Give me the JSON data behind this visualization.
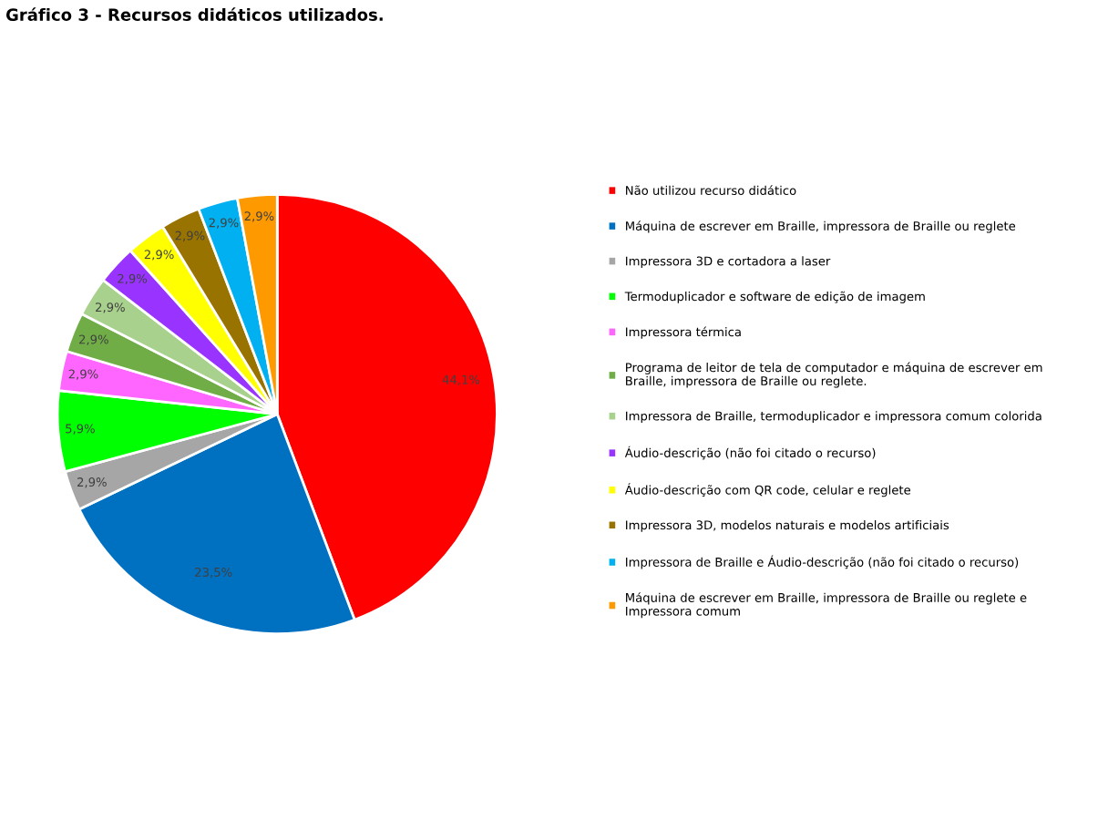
{
  "chart_data": {
    "type": "pie",
    "title": "Gráfico 3 - Recursos didáticos utilizados.",
    "categories": [
      "Não utilizou recurso didático",
      "Máquina de escrever em Braille, impressora de Braille ou reglete",
      "Impressora 3D e cortadora a laser",
      "Termoduplicador e software de edição de imagem",
      "Impressora térmica",
      "Programa de leitor de tela de computador e máquina de escrever em Braille, impressora de Braille ou reglete.",
      "Impressora de Braille, termoduplicador e impressora comum colorida",
      "Áudio-descrição (não foi citado o recurso)",
      "Áudio-descrição com QR code, celular e reglete",
      "Impressora 3D, modelos naturais e modelos artificiais",
      "Impressora de Braille e Áudio-descrição (não foi citado o recurso)",
      "Máquina de escrever em Braille, impressora de Braille ou reglete e Impressora comum"
    ],
    "values": [
      44.1,
      23.5,
      2.9,
      5.9,
      2.9,
      2.9,
      2.9,
      2.9,
      2.9,
      2.9,
      2.9,
      2.9
    ],
    "value_labels": [
      "44,1%",
      "23,5%",
      "2,9%",
      "5,9%",
      "2,9%",
      "2,9%",
      "2,9%",
      "2,9%",
      "2,9%",
      "2,9%",
      "2,9%",
      "2,9%"
    ],
    "colors": [
      "#ff0000",
      "#0070c0",
      "#a6a6a6",
      "#00ff00",
      "#ff66ff",
      "#70ad47",
      "#a9d18e",
      "#9933ff",
      "#ffff00",
      "#997300",
      "#00b0f0",
      "#ff9900"
    ],
    "legend": "right"
  }
}
